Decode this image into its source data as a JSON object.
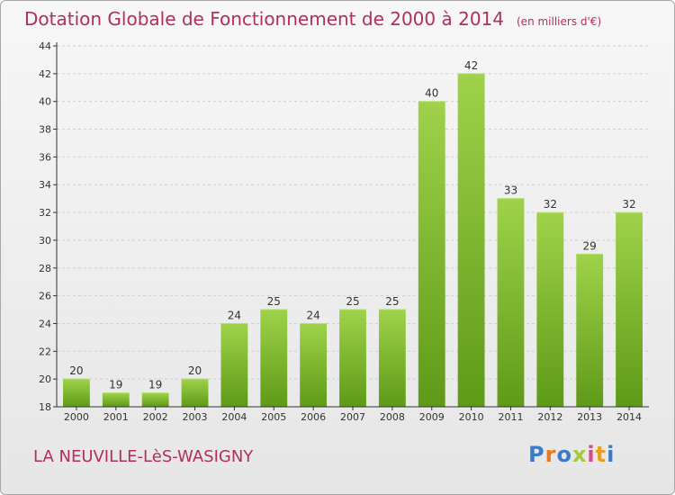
{
  "header": {
    "title": "Dotation Globale de Fonctionnement de 2000 à 2014",
    "unit": "(en milliers d'€)"
  },
  "footer": {
    "commune": "LA NEUVILLE-LèS-WASIGNY",
    "brand_letters": [
      "P",
      "r",
      "o",
      "x",
      "i",
      "t",
      "i"
    ]
  },
  "colors": {
    "title": "#b0305a",
    "bar_top": "#9fd24a",
    "bar_bottom": "#5e9a18",
    "axis": "#333333",
    "grid": "#cfcfcf"
  },
  "chart_data": {
    "type": "bar",
    "title": "Dotation Globale de Fonctionnement de 2000 à 2014",
    "subtitle": "(en milliers d'€)",
    "categories": [
      "2000",
      "2001",
      "2002",
      "2003",
      "2004",
      "2005",
      "2006",
      "2007",
      "2008",
      "2009",
      "2010",
      "2011",
      "2012",
      "2013",
      "2014"
    ],
    "values": [
      20,
      19,
      19,
      20,
      24,
      25,
      24,
      25,
      25,
      40,
      42,
      33,
      32,
      29,
      32
    ],
    "ylim": [
      18,
      44
    ],
    "yticks": [
      18,
      20,
      22,
      24,
      26,
      28,
      30,
      32,
      34,
      36,
      38,
      40,
      42,
      44
    ],
    "grid": true,
    "xlabel": "",
    "ylabel": ""
  }
}
